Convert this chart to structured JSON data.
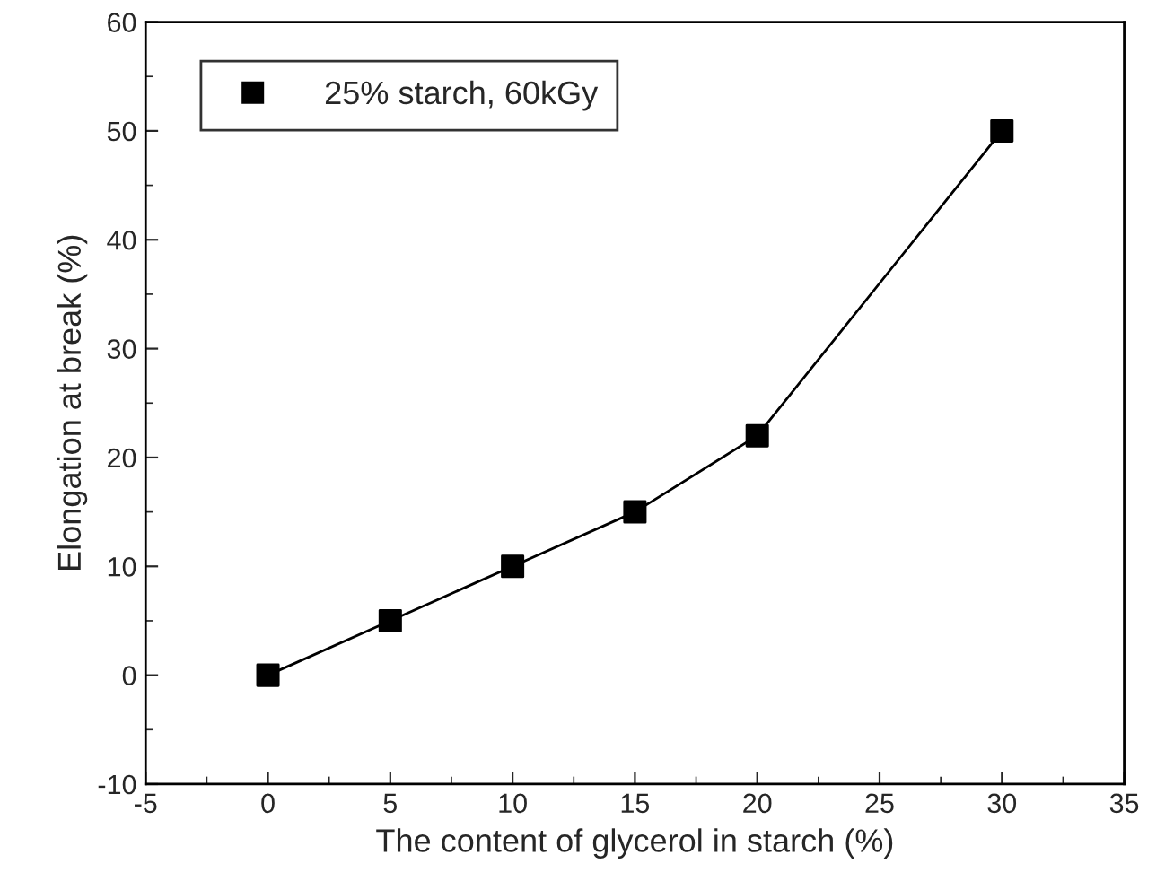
{
  "chart_data": {
    "type": "line",
    "xlabel": "The content of glycerol in starch (%)",
    "ylabel": "Elongation at break (%)",
    "x": [
      0,
      5,
      10,
      15,
      20,
      30
    ],
    "series": [
      {
        "name": "25% starch, 60kGy",
        "color": "#000000",
        "values": [
          0,
          5,
          10,
          15,
          22,
          50
        ]
      }
    ],
    "xlim": [
      -5,
      35
    ],
    "xticks": [
      -5,
      0,
      5,
      10,
      15,
      20,
      25,
      30,
      35
    ],
    "ylim": [
      -10,
      60
    ],
    "yticks": [
      -10,
      0,
      10,
      20,
      30,
      40,
      50,
      60
    ],
    "marker": "square",
    "line_style": "solid",
    "legend": "top left",
    "grid": false
  }
}
